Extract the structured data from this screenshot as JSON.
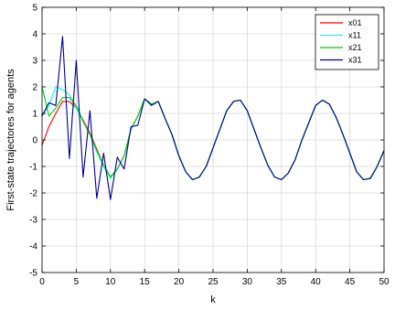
{
  "chart_data": {
    "type": "line",
    "xlabel": "k",
    "ylabel": "First-state trajectores for agents",
    "xlim": [
      0,
      50
    ],
    "ylim": [
      -5,
      5
    ],
    "xticks": [
      0,
      5,
      10,
      15,
      20,
      25,
      30,
      35,
      40,
      45,
      50
    ],
    "yticks": [
      -5,
      -4,
      -3,
      -2,
      -1,
      0,
      1,
      2,
      3,
      4,
      5
    ],
    "grid": true,
    "legend_position": "top-right",
    "x": [
      0,
      1,
      2,
      3,
      4,
      5,
      6,
      7,
      8,
      9,
      10,
      11,
      12,
      13,
      14,
      15,
      16,
      17,
      18,
      19,
      20,
      21,
      22,
      23,
      24,
      25,
      26,
      27,
      28,
      29,
      30,
      31,
      32,
      33,
      34,
      35,
      36,
      37,
      38,
      39,
      40,
      41,
      42,
      43,
      44,
      45,
      46,
      47,
      48,
      49,
      50
    ],
    "series": [
      {
        "name": "x01",
        "color": "#ff0000",
        "values": [
          -0.2,
          0.5,
          1.0,
          1.45,
          1.45,
          1.2,
          0.75,
          0.25,
          -0.35,
          -0.95,
          -1.4,
          -1.1,
          -0.6,
          0.4,
          0.9,
          1.55,
          1.35,
          1.45,
          0.8,
          0.2,
          -0.6,
          -1.2,
          -1.5,
          -1.4,
          -1.0,
          -0.3,
          0.4,
          1.1,
          1.45,
          1.5,
          1.1,
          0.4,
          -0.3,
          -0.95,
          -1.4,
          -1.5,
          -1.25,
          -0.75,
          0.0,
          0.65,
          1.3,
          1.5,
          1.35,
          0.85,
          0.2,
          -0.5,
          -1.2,
          -1.5,
          -1.45,
          -1.0,
          -0.4
        ]
      },
      {
        "name": "x11",
        "color": "#00ffff",
        "values": [
          0.9,
          1.3,
          2.0,
          1.9,
          1.7,
          1.2,
          0.7,
          0.2,
          -0.45,
          -1.0,
          -1.45,
          -1.1,
          -0.6,
          0.4,
          0.9,
          1.55,
          1.35,
          1.45,
          0.8,
          0.2,
          -0.6,
          -1.2,
          -1.5,
          -1.4,
          -1.0,
          -0.3,
          0.4,
          1.1,
          1.45,
          1.5,
          1.1,
          0.4,
          -0.3,
          -0.95,
          -1.4,
          -1.5,
          -1.25,
          -0.75,
          0.0,
          0.65,
          1.3,
          1.5,
          1.35,
          0.85,
          0.2,
          -0.5,
          -1.2,
          -1.5,
          -1.45,
          -1.0,
          -0.4
        ]
      },
      {
        "name": "x21",
        "color": "#00cc00",
        "values": [
          2.0,
          0.9,
          1.2,
          1.6,
          1.6,
          1.3,
          0.7,
          0.2,
          -0.4,
          -0.95,
          -1.4,
          -1.1,
          -0.6,
          0.4,
          0.9,
          1.55,
          1.35,
          1.45,
          0.8,
          0.2,
          -0.6,
          -1.2,
          -1.5,
          -1.4,
          -1.0,
          -0.3,
          0.4,
          1.1,
          1.45,
          1.5,
          1.1,
          0.4,
          -0.3,
          -0.95,
          -1.4,
          -1.5,
          -1.25,
          -0.75,
          0.0,
          0.65,
          1.3,
          1.5,
          1.35,
          0.85,
          0.2,
          -0.5,
          -1.2,
          -1.5,
          -1.45,
          -1.0,
          -0.4
        ]
      },
      {
        "name": "x31",
        "color": "#00008b",
        "values": [
          0.9,
          1.4,
          1.3,
          3.9,
          -0.7,
          3.0,
          -1.4,
          1.1,
          -2.2,
          -0.5,
          -2.25,
          -0.65,
          -1.1,
          0.5,
          0.55,
          1.55,
          1.3,
          1.45,
          0.8,
          0.2,
          -0.6,
          -1.2,
          -1.5,
          -1.4,
          -1.0,
          -0.3,
          0.4,
          1.1,
          1.45,
          1.5,
          1.1,
          0.4,
          -0.3,
          -0.95,
          -1.4,
          -1.5,
          -1.25,
          -0.75,
          0.0,
          0.65,
          1.3,
          1.5,
          1.35,
          0.85,
          0.2,
          -0.5,
          -1.2,
          -1.5,
          -1.45,
          -1.0,
          -0.4
        ]
      }
    ]
  }
}
